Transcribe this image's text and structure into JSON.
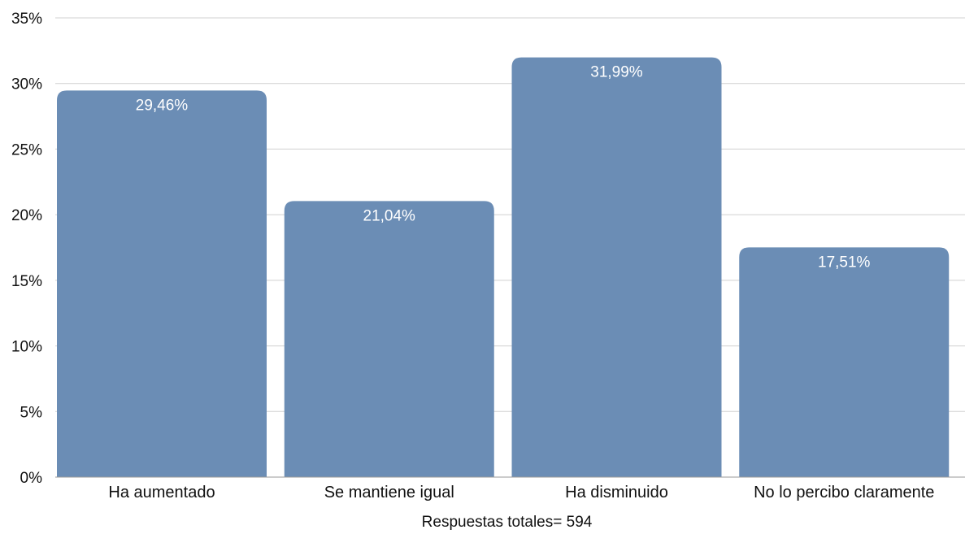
{
  "chart_data": {
    "type": "bar",
    "categories": [
      "Ha aumentado",
      "Se mantiene igual",
      "Ha disminuido",
      "No lo percibo claramente"
    ],
    "values": [
      29.46,
      21.04,
      31.99,
      17.51
    ],
    "data_labels": [
      "29,46%",
      "21,04%",
      "31,99%",
      "17,51%"
    ],
    "xlabel": "Respuestas totales= 594",
    "ylabel": "",
    "ylim": [
      0,
      35
    ],
    "yticks": [
      {
        "value": 0,
        "label": "0%"
      },
      {
        "value": 5,
        "label": "5%"
      },
      {
        "value": 10,
        "label": "10%"
      },
      {
        "value": 15,
        "label": "15%"
      },
      {
        "value": 20,
        "label": "20%"
      },
      {
        "value": 25,
        "label": "25%"
      },
      {
        "value": 30,
        "label": "30%"
      },
      {
        "value": 35,
        "label": "35%"
      }
    ],
    "grid": true,
    "legend": "none",
    "colors": {
      "bar": "#6b8db5",
      "grid": "#d0d0d0",
      "axis": "#9a9a9a",
      "data_label": "#ffffff"
    }
  }
}
